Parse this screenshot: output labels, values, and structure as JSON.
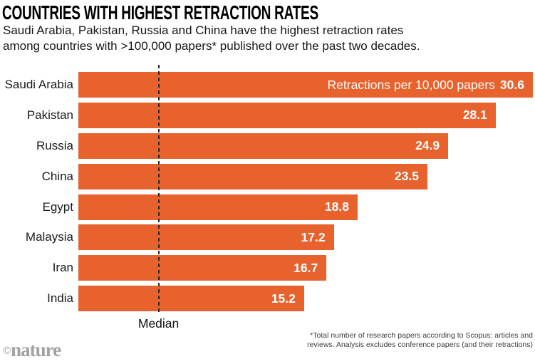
{
  "colors": {
    "bar": "#E7622D",
    "title_text": "#000000",
    "body_text": "#161616",
    "value_text": "#ffffff",
    "median_line": "#2a2a2a",
    "footnote_text": "#3d3d3d",
    "credit_text": "#a1a1a1",
    "background": "#ffffff"
  },
  "header": {
    "title": "COUNTRIES WITH HIGHEST RETRACTION RATES",
    "subtitle_line1": "Saudi Arabia, Pakistan, Russia and China have the highest retraction rates",
    "subtitle_line2": "among countries with >100,000 papers* published over the past two decades."
  },
  "chart_data": {
    "type": "bar",
    "orientation": "horizontal",
    "title": "Countries with highest retraction rates",
    "categories": [
      "Saudi Arabia",
      "Pakistan",
      "Russia",
      "China",
      "Egypt",
      "Malaysia",
      "Iran",
      "India"
    ],
    "values": [
      30.6,
      28.1,
      24.9,
      23.5,
      18.8,
      17.2,
      16.7,
      15.2
    ],
    "value_axis_label": "Retractions per 10,000 papers",
    "xlim": [
      0,
      30.6
    ],
    "grid": false,
    "legend": false,
    "median_label": "Median",
    "median_value_estimate": 5.4
  },
  "footnote": {
    "line1": "*Total number of research papers according to Scopus: articles and",
    "line2": "reviews. Analysis excludes conference papers (and their retractions)"
  },
  "credit": {
    "symbol": "©",
    "name": "nature"
  }
}
